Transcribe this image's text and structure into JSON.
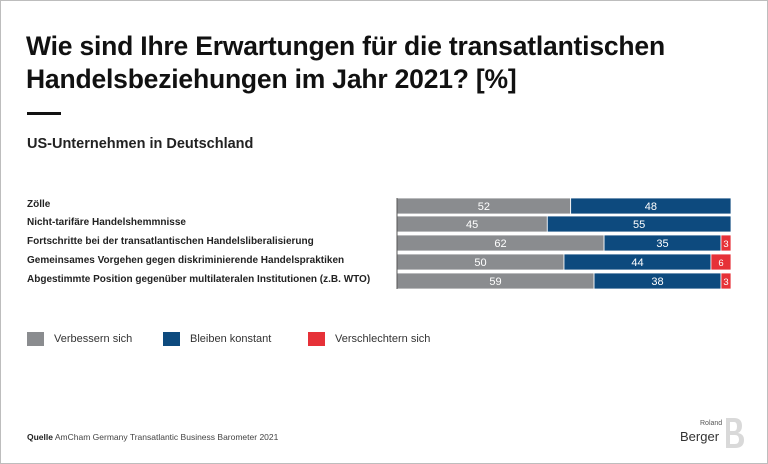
{
  "title": "Wie sind Ihre Erwartungen für die transatlantischen Handelsbeziehungen im Jahr 2021? [%]",
  "subtitle": "US-Unternehmen in Deutschland",
  "chart_data": {
    "type": "bar",
    "orientation": "horizontal",
    "stacked": true,
    "categories": [
      "Zölle",
      "Nicht-tarifäre Handelshemmnisse",
      "Fortschritte bei der transatlantischen Handelsliberalisierung",
      "Gemeinsames Vorgehen gegen diskriminierende Handelspraktiken",
      "Abgestimmte Position gegenüber multilateralen Institutionen (z.B. WTO)"
    ],
    "series": [
      {
        "name": "Verbessern sich",
        "color": "#8a8c8f",
        "values": [
          52,
          45,
          62,
          50,
          59
        ]
      },
      {
        "name": "Bleiben konstant",
        "color": "#0d4a7e",
        "values": [
          48,
          55,
          35,
          44,
          38
        ]
      },
      {
        "name": "Verschlechtern sich",
        "color": "#e63138",
        "values": [
          0,
          0,
          3,
          6,
          3
        ]
      }
    ],
    "xlim": [
      0,
      100
    ],
    "legend_position": "bottom-left"
  },
  "source": {
    "label": "Quelle",
    "text": "AmCham Germany Transatlantic Business Barometer 2021"
  },
  "logo": {
    "line1": "Roland",
    "line2": "Berger"
  }
}
